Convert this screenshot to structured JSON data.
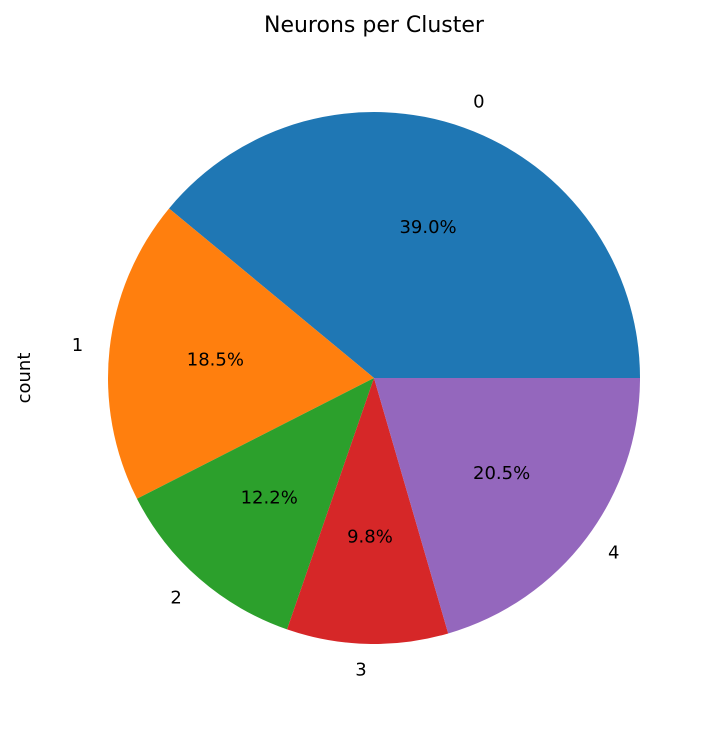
{
  "chart_data": {
    "type": "pie",
    "title": "Neurons per Cluster",
    "ylabel": "count",
    "categories": [
      "0",
      "1",
      "2",
      "3",
      "4"
    ],
    "values": [
      39.0,
      18.5,
      12.2,
      9.8,
      20.5
    ],
    "value_labels": [
      "39.0%",
      "18.5%",
      "12.2%",
      "9.8%",
      "20.5%"
    ],
    "colors": [
      "#1f77b4",
      "#ff7f0e",
      "#2ca02c",
      "#d62728",
      "#9467bd"
    ],
    "start_angle_deg": 0,
    "direction": "counterclockwise"
  }
}
